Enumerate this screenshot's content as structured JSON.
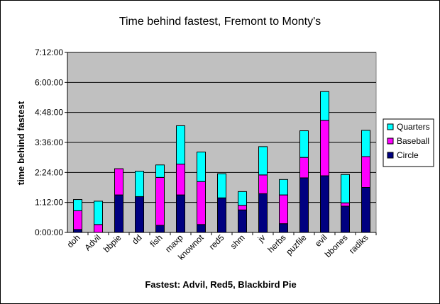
{
  "chart_data": {
    "type": "bar",
    "stacked": true,
    "title": "Time behind fastest, Fremont to Monty's",
    "xlabel": "Fastest: Advil, Red5, Blackbird Pie",
    "ylabel": "time behind fastest",
    "y_tick_labels": [
      "0:00:00",
      "1:12:00",
      "2:24:00",
      "3:36:00",
      "4:48:00",
      "6:00:00",
      "7:12:00"
    ],
    "y_unit": "minutes",
    "ylim": [
      0,
      432
    ],
    "categories": [
      "doh",
      "Advil",
      "bbpie",
      "dd",
      "fish",
      "maxp",
      "knownot",
      "red5",
      "shm",
      "jv",
      "herbs",
      "puzfile",
      "evil",
      "bbones",
      "radiks"
    ],
    "series": [
      {
        "name": "Circle",
        "color": "#000080",
        "values": [
          7,
          0,
          90,
          86,
          17,
          90,
          19,
          83,
          54,
          93,
          21,
          131,
          136,
          63,
          108
        ]
      },
      {
        "name": "Baseball",
        "color": "#ff00ff",
        "values": [
          45,
          19,
          63,
          0,
          115,
          74,
          103,
          0,
          11,
          45,
          69,
          49,
          133,
          8,
          74
        ]
      },
      {
        "name": "Quarters",
        "color": "#00ffff",
        "values": [
          27,
          56,
          0,
          61,
          30,
          92,
          71,
          58,
          33,
          68,
          37,
          64,
          69,
          68,
          63
        ]
      }
    ],
    "legend_position": "right",
    "legend_order": [
      "Quarters",
      "Baseball",
      "Circle"
    ],
    "plot_background": "#c0c0c0",
    "gridlines": true
  }
}
